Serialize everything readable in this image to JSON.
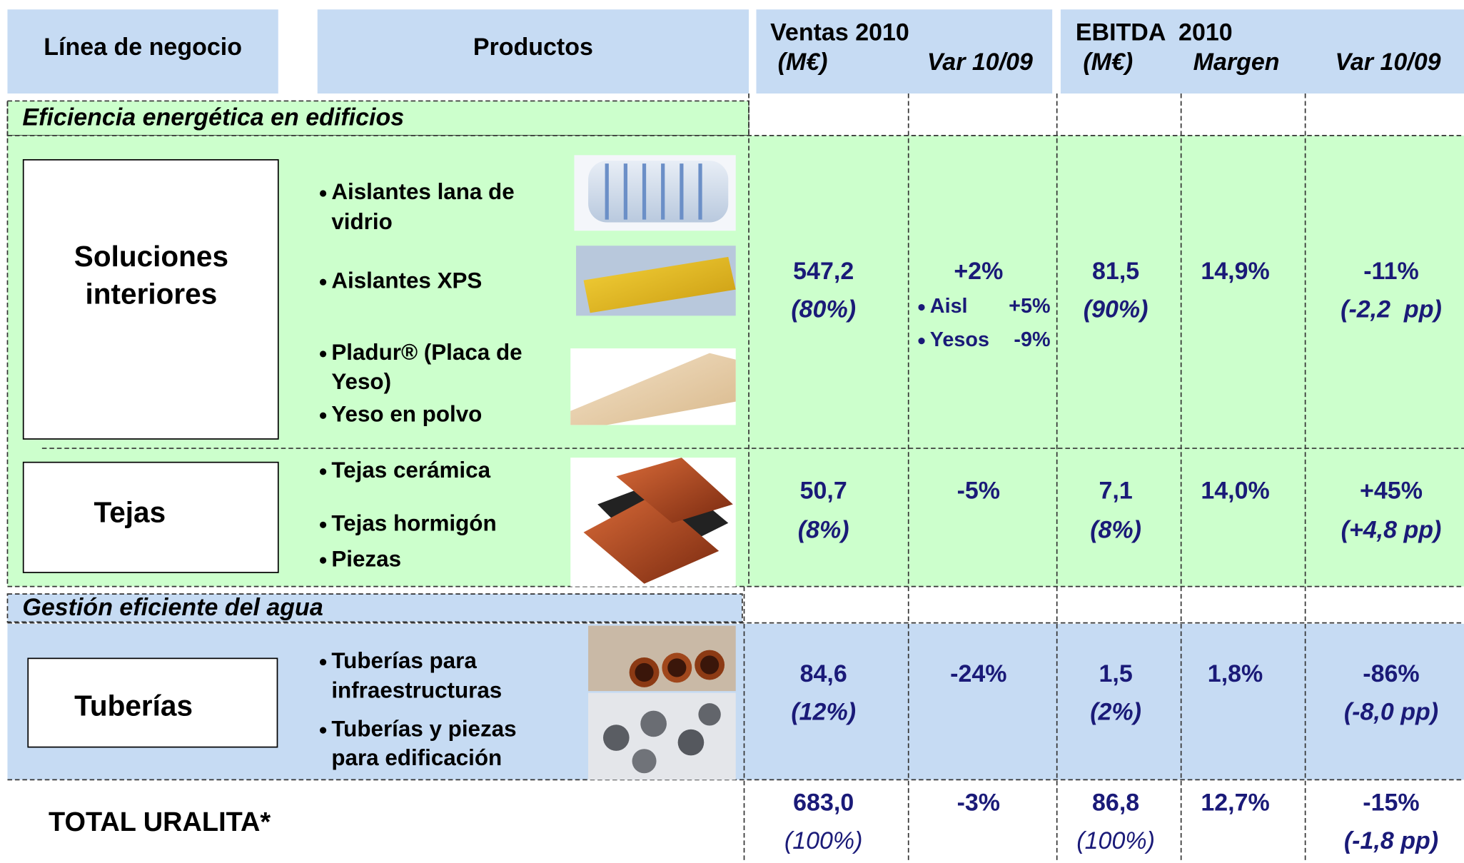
{
  "header": {
    "line": "Línea de negocio",
    "products": "Productos",
    "sales": "Ventas 2010",
    "sales_unit": "(M€)",
    "sales_var": "Var 10/09",
    "ebitda": "EBITDA  2010",
    "ebitda_unit": "(M€)",
    "margin": "Margen",
    "ebitda_var": "Var 10/09"
  },
  "sections": [
    {
      "title": "Eficiencia energética en edificios",
      "rows": [
        {
          "line": [
            "Soluciones",
            "interiores"
          ],
          "products": [
            [
              "Aislantes lana de",
              "vidrio"
            ],
            [
              "Aislantes XPS"
            ],
            [
              "Pladur® (Placa de",
              "Yeso)"
            ],
            [
              "Yeso en polvo"
            ]
          ],
          "sales": "547,2",
          "sales_share": "(80%)",
          "sales_var": "+2%",
          "sales_var_detail": [
            {
              "label": "Aisl",
              "value": "+5%"
            },
            {
              "label": "Yesos",
              "value": "-9%"
            }
          ],
          "ebitda": "81,5",
          "ebitda_share": "(90%)",
          "margin": "14,9%",
          "ebitda_var": "-11%",
          "ebitda_var_pp": "(-2,2  pp)"
        },
        {
          "line": [
            "Tejas"
          ],
          "products": [
            [
              "Tejas cerámica"
            ],
            [
              "Tejas hormigón"
            ],
            [
              "Piezas"
            ]
          ],
          "sales": "50,7",
          "sales_share": "(8%)",
          "sales_var": "-5%",
          "ebitda": "7,1",
          "ebitda_share": "(8%)",
          "margin": "14,0%",
          "ebitda_var": "+45%",
          "ebitda_var_pp": "(+4,8 pp)"
        }
      ]
    },
    {
      "title": "Gestión eficiente del agua",
      "rows": [
        {
          "line": [
            "Tuberías"
          ],
          "products": [
            [
              "Tuberías para",
              "infraestructuras"
            ],
            [
              "Tuberías y piezas",
              "para edificación"
            ]
          ],
          "sales": "84,6",
          "sales_share": "(12%)",
          "sales_var": "-24%",
          "ebitda": "1,5",
          "ebitda_share": "(2%)",
          "margin": "1,8%",
          "ebitda_var": "-86%",
          "ebitda_var_pp": "(-8,0 pp)"
        }
      ]
    }
  ],
  "total": {
    "line": "TOTAL URALITA*",
    "sales": "683,0",
    "sales_share": "(100%)",
    "sales_var": "-3%",
    "ebitda": "86,8",
    "ebitda_share": "(100%)",
    "margin": "12,7%",
    "ebitda_var": "-15%",
    "ebitda_var_pp": "(-1,8 pp)"
  }
}
